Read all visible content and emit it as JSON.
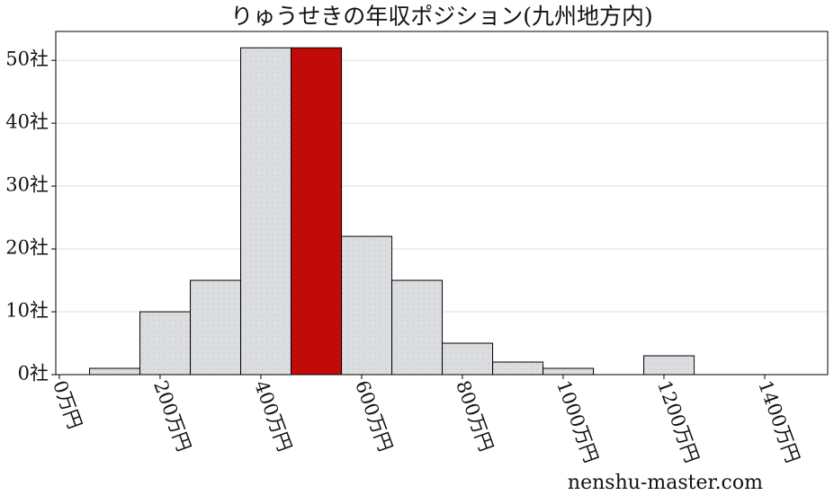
{
  "chart_data": {
    "type": "histogram",
    "title": "りゅうせきの年収ポジション(九州地方内)",
    "bins": [
      60,
      160,
      260,
      360,
      460,
      560,
      660,
      760,
      860,
      960,
      1060,
      1160,
      1260
    ],
    "values": [
      1,
      10,
      15,
      52,
      52,
      22,
      15,
      5,
      2,
      1,
      0,
      3
    ],
    "colors": [
      "#dcdde0",
      "#dcdde0",
      "#dcdde0",
      "#dcdde0",
      "#c00b09",
      "#dcdde0",
      "#dcdde0",
      "#dcdde0",
      "#dcdde0",
      "#dcdde0",
      "#dcdde0",
      "#dcdde0"
    ],
    "xlim": [
      -7,
      1525
    ],
    "xticks": [
      {
        "value": 0,
        "label": "0万円"
      },
      {
        "value": 200,
        "label": "200万円"
      },
      {
        "value": 400,
        "label": "400万円"
      },
      {
        "value": 600,
        "label": "600万円"
      },
      {
        "value": 800,
        "label": "800万円"
      },
      {
        "value": 1000,
        "label": "1000万円"
      },
      {
        "value": 1200,
        "label": "1200万円"
      },
      {
        "value": 1400,
        "label": "1400万円"
      }
    ],
    "ylim": [
      0,
      54.6
    ],
    "yticks": [
      {
        "value": 0,
        "label": "0社"
      },
      {
        "value": 10,
        "label": "10社"
      },
      {
        "value": 20,
        "label": "20社"
      },
      {
        "value": 30,
        "label": "30社"
      },
      {
        "value": 40,
        "label": "40社"
      },
      {
        "value": 50,
        "label": "50社"
      }
    ],
    "grid": true,
    "watermark": "nenshu-master.com"
  }
}
